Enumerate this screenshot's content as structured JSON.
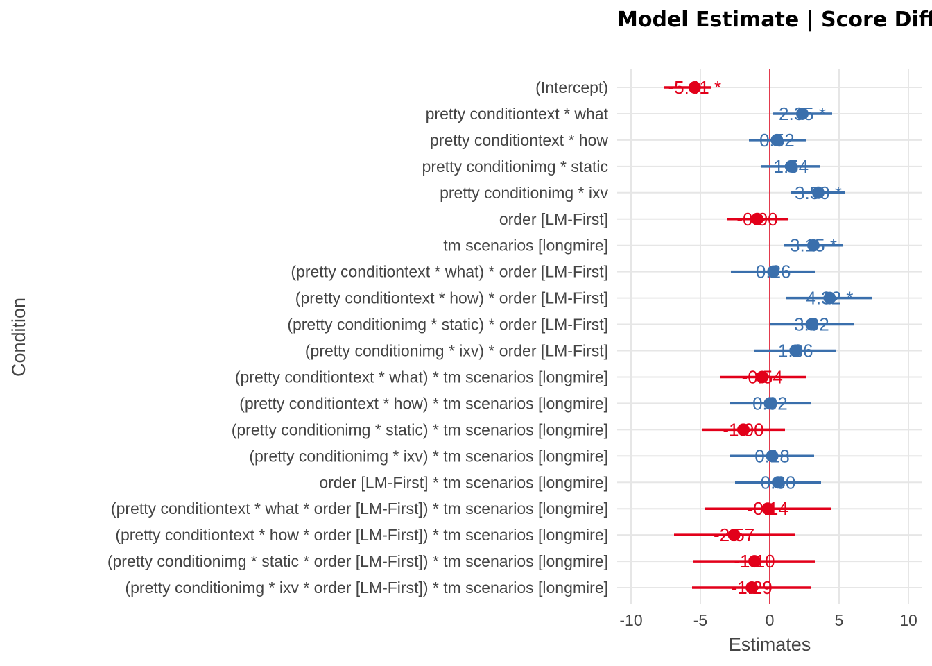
{
  "chart_data": {
    "type": "forest",
    "title": "Model Estimate | Score Difference",
    "xlabel": "Estimates",
    "ylabel": "Condition",
    "xlim": [
      -10,
      10
    ],
    "xticks": [
      -10,
      -5,
      0,
      5,
      10
    ],
    "reference_line": 0,
    "grid": true,
    "colors": {
      "positive": "#3a6fac",
      "negative": "#e2001a",
      "reference": "#e2001a",
      "grid": "#e6e6e6"
    },
    "rows": [
      {
        "term": "(Intercept)",
        "estimate": -5.41,
        "low": -7.6,
        "high": -4.2,
        "label": "-5.41 *"
      },
      {
        "term": "pretty conditiontext * what",
        "estimate": 2.35,
        "low": 0.2,
        "high": 4.5,
        "label": "2.35 *"
      },
      {
        "term": "pretty conditiontext * how",
        "estimate": 0.52,
        "low": -1.5,
        "high": 2.6,
        "label": "0.52"
      },
      {
        "term": "pretty conditionimg * static",
        "estimate": 1.54,
        "low": -0.6,
        "high": 3.6,
        "label": "1.54"
      },
      {
        "term": "pretty conditionimg * ixv",
        "estimate": 3.5,
        "low": 1.5,
        "high": 5.4,
        "label": "3.50 *"
      },
      {
        "term": "order [LM-First]",
        "estimate": -0.9,
        "low": -3.1,
        "high": 1.3,
        "label": "-0.90"
      },
      {
        "term": "tm scenarios [longmire]",
        "estimate": 3.15,
        "low": 1.0,
        "high": 5.3,
        "label": "3.15 *"
      },
      {
        "term": "(pretty conditiontext * what) * order [LM-First]",
        "estimate": 0.26,
        "low": -2.8,
        "high": 3.3,
        "label": "0.26"
      },
      {
        "term": "(pretty conditiontext * how) * order [LM-First]",
        "estimate": 4.32,
        "low": 1.2,
        "high": 7.4,
        "label": "4.32 *"
      },
      {
        "term": "(pretty conditionimg * static) * order [LM-First]",
        "estimate": 3.02,
        "low": 0.0,
        "high": 6.1,
        "label": "3.02"
      },
      {
        "term": "(pretty conditionimg * ixv) * order [LM-First]",
        "estimate": 1.86,
        "low": -1.1,
        "high": 4.8,
        "label": "1.86"
      },
      {
        "term": "(pretty conditiontext * what) * tm scenarios [longmire]",
        "estimate": -0.54,
        "low": -3.6,
        "high": 2.6,
        "label": "-0.54"
      },
      {
        "term": "(pretty conditiontext * how) * tm scenarios [longmire]",
        "estimate": 0.02,
        "low": -2.9,
        "high": 3.0,
        "label": "0.02"
      },
      {
        "term": "(pretty conditionimg * static) * tm scenarios [longmire]",
        "estimate": -1.9,
        "low": -4.9,
        "high": 1.1,
        "label": "-1.90"
      },
      {
        "term": "(pretty conditionimg * ixv) * tm scenarios [longmire]",
        "estimate": 0.18,
        "low": -2.9,
        "high": 3.2,
        "label": "0.18"
      },
      {
        "term": "order [LM-First] * tm scenarios [longmire]",
        "estimate": 0.6,
        "low": -2.5,
        "high": 3.7,
        "label": "0.60"
      },
      {
        "term": "(pretty conditiontext * what * order [LM-First]) * tm scenarios [longmire]",
        "estimate": -0.14,
        "low": -4.7,
        "high": 4.4,
        "label": "-0.14"
      },
      {
        "term": "(pretty conditiontext * how * order [LM-First]) * tm scenarios [longmire]",
        "estimate": -2.57,
        "low": -6.9,
        "high": 1.8,
        "label": "-2.57"
      },
      {
        "term": "(pretty conditionimg * static * order [LM-First]) * tm scenarios [longmire]",
        "estimate": -1.1,
        "low": -5.5,
        "high": 3.3,
        "label": "-1.10"
      },
      {
        "term": "(pretty conditionimg * ixv * order [LM-First]) * tm scenarios [longmire]",
        "estimate": -1.29,
        "low": -5.6,
        "high": 3.0,
        "label": "-1.29"
      }
    ]
  }
}
